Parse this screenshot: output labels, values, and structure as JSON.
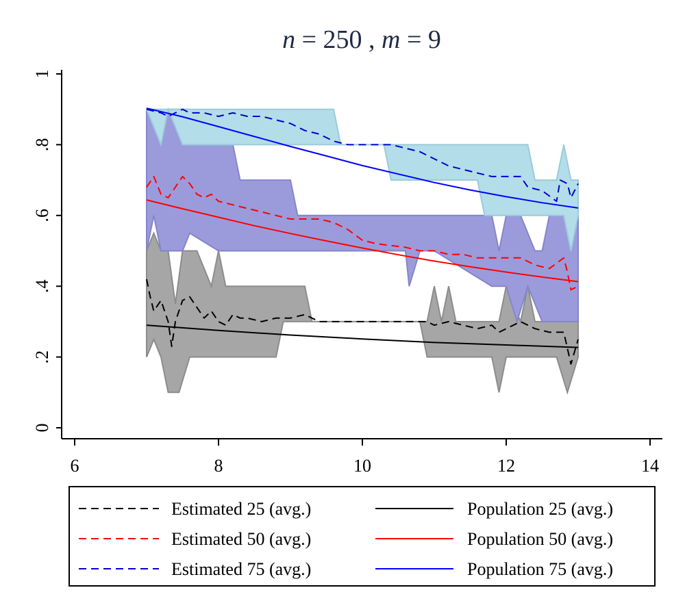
{
  "chart_data": {
    "type": "line",
    "title_n": "n",
    "title_eq1": " = 250 , ",
    "title_m": "m",
    "title_eq2": " = 9",
    "xlim": [
      6,
      14
    ],
    "ylim": [
      0,
      1
    ],
    "x_ticks": [
      6,
      8,
      10,
      12,
      14
    ],
    "x_tick_labels": [
      "6",
      "8",
      "10",
      "12",
      "14"
    ],
    "y_ticks": [
      0,
      0.2,
      0.4,
      0.6,
      0.8,
      1
    ],
    "y_tick_labels": [
      "0",
      ".2",
      ".4",
      ".6",
      ".8",
      "1"
    ],
    "bands": [
      {
        "name": "Band 25",
        "color": "#a6a6a6",
        "edge": "#8c8c8c",
        "upper": [
          [
            7.0,
            0.5
          ],
          [
            7.1,
            0.55
          ],
          [
            7.2,
            0.5
          ],
          [
            7.3,
            0.5
          ],
          [
            7.4,
            0.35
          ],
          [
            7.5,
            0.5
          ],
          [
            7.6,
            0.5
          ],
          [
            7.7,
            0.5
          ],
          [
            7.8,
            0.45
          ],
          [
            7.9,
            0.4
          ],
          [
            8.0,
            0.5
          ],
          [
            8.1,
            0.4
          ],
          [
            8.2,
            0.4
          ],
          [
            8.4,
            0.4
          ],
          [
            8.6,
            0.4
          ],
          [
            8.8,
            0.4
          ],
          [
            9.0,
            0.4
          ],
          [
            9.2,
            0.4
          ],
          [
            9.3,
            0.3
          ],
          [
            10.9,
            0.3
          ],
          [
            11.0,
            0.4
          ],
          [
            11.1,
            0.3
          ],
          [
            11.2,
            0.4
          ],
          [
            11.3,
            0.3
          ],
          [
            11.8,
            0.3
          ],
          [
            11.9,
            0.3
          ],
          [
            12.0,
            0.4
          ],
          [
            12.1,
            0.35
          ],
          [
            12.2,
            0.3
          ],
          [
            12.3,
            0.4
          ],
          [
            12.4,
            0.3
          ],
          [
            12.8,
            0.3
          ],
          [
            13.0,
            0.3
          ]
        ],
        "lower": [
          [
            7.0,
            0.2
          ],
          [
            7.1,
            0.25
          ],
          [
            7.2,
            0.2
          ],
          [
            7.3,
            0.1
          ],
          [
            7.45,
            0.1
          ],
          [
            7.6,
            0.2
          ],
          [
            8.0,
            0.2
          ],
          [
            8.5,
            0.2
          ],
          [
            8.8,
            0.2
          ],
          [
            8.9,
            0.3
          ],
          [
            10.8,
            0.3
          ],
          [
            10.9,
            0.2
          ],
          [
            11.8,
            0.2
          ],
          [
            11.9,
            0.1
          ],
          [
            12.0,
            0.2
          ],
          [
            12.7,
            0.2
          ],
          [
            12.85,
            0.1
          ],
          [
            13.0,
            0.2
          ]
        ]
      },
      {
        "name": "Band 50",
        "color": "#9b9bdc",
        "edge": "#8585cc",
        "upper": [
          [
            7.0,
            0.9
          ],
          [
            7.1,
            0.85
          ],
          [
            7.2,
            0.8
          ],
          [
            7.3,
            0.9
          ],
          [
            7.4,
            0.9
          ],
          [
            7.6,
            0.9
          ],
          [
            7.8,
            0.8
          ],
          [
            8.0,
            0.8
          ],
          [
            8.2,
            0.8
          ],
          [
            8.3,
            0.7
          ],
          [
            8.6,
            0.7
          ],
          [
            9.0,
            0.7
          ],
          [
            9.1,
            0.6
          ],
          [
            11.8,
            0.6
          ],
          [
            11.9,
            0.5
          ],
          [
            12.0,
            0.6
          ],
          [
            12.2,
            0.6
          ],
          [
            12.4,
            0.5
          ],
          [
            12.5,
            0.5
          ],
          [
            12.6,
            0.6
          ],
          [
            12.8,
            0.6
          ],
          [
            12.9,
            0.6
          ],
          [
            13.0,
            0.6
          ]
        ],
        "lower": [
          [
            7.0,
            0.5
          ],
          [
            7.1,
            0.6
          ],
          [
            7.2,
            0.5
          ],
          [
            7.5,
            0.5
          ],
          [
            7.6,
            0.55
          ],
          [
            8.0,
            0.5
          ],
          [
            9.5,
            0.5
          ],
          [
            10.5,
            0.5
          ],
          [
            10.6,
            0.5
          ],
          [
            10.65,
            0.4
          ],
          [
            10.8,
            0.5
          ],
          [
            11.0,
            0.5
          ],
          [
            11.8,
            0.4
          ],
          [
            12.0,
            0.4
          ],
          [
            12.15,
            0.3
          ],
          [
            12.3,
            0.4
          ],
          [
            12.5,
            0.3
          ],
          [
            12.7,
            0.3
          ],
          [
            13.0,
            0.3
          ]
        ]
      },
      {
        "name": "Band 75",
        "color": "#b3dde8",
        "edge": "#9acbdb",
        "upper": [
          [
            7.0,
            0.9
          ],
          [
            9.6,
            0.9
          ],
          [
            9.7,
            0.8
          ],
          [
            10.1,
            0.8
          ],
          [
            10.4,
            0.8
          ],
          [
            12.3,
            0.8
          ],
          [
            12.4,
            0.7
          ],
          [
            12.7,
            0.7
          ],
          [
            12.8,
            0.8
          ],
          [
            12.9,
            0.7
          ],
          [
            13.0,
            0.7
          ]
        ],
        "lower": [
          [
            7.0,
            0.9
          ],
          [
            7.2,
            0.8
          ],
          [
            7.3,
            0.9
          ],
          [
            7.5,
            0.8
          ],
          [
            9.6,
            0.8
          ],
          [
            10.0,
            0.8
          ],
          [
            10.3,
            0.8
          ],
          [
            10.4,
            0.7
          ],
          [
            11.6,
            0.7
          ],
          [
            11.7,
            0.6
          ],
          [
            12.4,
            0.6
          ],
          [
            12.6,
            0.6
          ],
          [
            12.8,
            0.6
          ],
          [
            12.9,
            0.5
          ],
          [
            13.0,
            0.6
          ]
        ]
      }
    ],
    "series": [
      {
        "name": "Estimated 25 (avg.)",
        "color": "#000000",
        "style": "dashed",
        "points": [
          [
            7.0,
            0.42
          ],
          [
            7.05,
            0.37
          ],
          [
            7.1,
            0.33
          ],
          [
            7.2,
            0.36
          ],
          [
            7.3,
            0.3
          ],
          [
            7.35,
            0.23
          ],
          [
            7.4,
            0.3
          ],
          [
            7.5,
            0.36
          ],
          [
            7.6,
            0.37
          ],
          [
            7.7,
            0.34
          ],
          [
            7.8,
            0.31
          ],
          [
            7.9,
            0.33
          ],
          [
            8.0,
            0.3
          ],
          [
            8.1,
            0.29
          ],
          [
            8.2,
            0.32
          ],
          [
            8.3,
            0.31
          ],
          [
            8.4,
            0.31
          ],
          [
            8.6,
            0.3
          ],
          [
            8.8,
            0.31
          ],
          [
            9.0,
            0.31
          ],
          [
            9.2,
            0.32
          ],
          [
            9.4,
            0.3
          ],
          [
            10.0,
            0.3
          ],
          [
            10.9,
            0.3
          ],
          [
            11.0,
            0.29
          ],
          [
            11.2,
            0.3
          ],
          [
            11.4,
            0.29
          ],
          [
            11.6,
            0.28
          ],
          [
            11.8,
            0.29
          ],
          [
            11.9,
            0.27
          ],
          [
            12.0,
            0.28
          ],
          [
            12.2,
            0.3
          ],
          [
            12.4,
            0.28
          ],
          [
            12.6,
            0.27
          ],
          [
            12.8,
            0.27
          ],
          [
            12.9,
            0.18
          ],
          [
            13.0,
            0.25
          ]
        ]
      },
      {
        "name": "Estimated 50 (avg.)",
        "color": "#ff0000",
        "style": "dashed",
        "points": [
          [
            7.0,
            0.68
          ],
          [
            7.1,
            0.71
          ],
          [
            7.2,
            0.66
          ],
          [
            7.3,
            0.65
          ],
          [
            7.5,
            0.71
          ],
          [
            7.6,
            0.69
          ],
          [
            7.7,
            0.66
          ],
          [
            7.8,
            0.65
          ],
          [
            7.9,
            0.66
          ],
          [
            8.0,
            0.64
          ],
          [
            8.2,
            0.63
          ],
          [
            8.4,
            0.62
          ],
          [
            8.6,
            0.61
          ],
          [
            8.8,
            0.6
          ],
          [
            9.0,
            0.59
          ],
          [
            9.4,
            0.59
          ],
          [
            9.6,
            0.58
          ],
          [
            9.8,
            0.56
          ],
          [
            10.0,
            0.53
          ],
          [
            10.2,
            0.52
          ],
          [
            10.6,
            0.51
          ],
          [
            10.8,
            0.5
          ],
          [
            11.0,
            0.5
          ],
          [
            11.2,
            0.49
          ],
          [
            11.4,
            0.49
          ],
          [
            11.6,
            0.48
          ],
          [
            11.8,
            0.48
          ],
          [
            12.0,
            0.48
          ],
          [
            12.2,
            0.48
          ],
          [
            12.4,
            0.46
          ],
          [
            12.6,
            0.45
          ],
          [
            12.8,
            0.48
          ],
          [
            12.85,
            0.44
          ],
          [
            12.9,
            0.39
          ],
          [
            13.0,
            0.4
          ]
        ]
      },
      {
        "name": "Estimated 75 (avg.)",
        "color": "#0000cc",
        "style": "dashed",
        "points": [
          [
            7.0,
            0.9
          ],
          [
            7.2,
            0.89
          ],
          [
            7.3,
            0.88
          ],
          [
            7.5,
            0.9
          ],
          [
            7.6,
            0.89
          ],
          [
            7.8,
            0.89
          ],
          [
            8.0,
            0.88
          ],
          [
            8.2,
            0.89
          ],
          [
            8.4,
            0.88
          ],
          [
            8.6,
            0.88
          ],
          [
            8.8,
            0.87
          ],
          [
            9.0,
            0.86
          ],
          [
            9.2,
            0.84
          ],
          [
            9.4,
            0.83
          ],
          [
            9.6,
            0.81
          ],
          [
            9.8,
            0.8
          ],
          [
            10.0,
            0.8
          ],
          [
            10.4,
            0.8
          ],
          [
            10.6,
            0.79
          ],
          [
            10.8,
            0.78
          ],
          [
            11.0,
            0.76
          ],
          [
            11.2,
            0.74
          ],
          [
            11.4,
            0.73
          ],
          [
            11.6,
            0.72
          ],
          [
            11.8,
            0.71
          ],
          [
            12.0,
            0.71
          ],
          [
            12.2,
            0.71
          ],
          [
            12.3,
            0.68
          ],
          [
            12.5,
            0.67
          ],
          [
            12.7,
            0.64
          ],
          [
            12.75,
            0.7
          ],
          [
            12.85,
            0.69
          ],
          [
            12.9,
            0.65
          ],
          [
            13.0,
            0.69
          ]
        ]
      },
      {
        "name": "Population 25 (avg.)",
        "color": "#000000",
        "style": "solid",
        "points": [
          [
            7.0,
            0.29
          ],
          [
            8.0,
            0.275
          ],
          [
            9.0,
            0.262
          ],
          [
            10.0,
            0.251
          ],
          [
            11.0,
            0.241
          ],
          [
            12.0,
            0.234
          ],
          [
            13.0,
            0.227
          ]
        ]
      },
      {
        "name": "Population 50 (avg.)",
        "color": "#ff0000",
        "style": "solid",
        "points": [
          [
            7.0,
            0.644
          ],
          [
            7.5,
            0.619
          ],
          [
            8.0,
            0.595
          ],
          [
            8.5,
            0.571
          ],
          [
            9.0,
            0.549
          ],
          [
            9.5,
            0.528
          ],
          [
            10.0,
            0.508
          ],
          [
            10.5,
            0.489
          ],
          [
            11.0,
            0.471
          ],
          [
            11.5,
            0.455
          ],
          [
            12.0,
            0.44
          ],
          [
            12.5,
            0.426
          ],
          [
            13.0,
            0.413
          ]
        ]
      },
      {
        "name": "Population 75 (avg.)",
        "color": "#0000ff",
        "style": "solid",
        "points": [
          [
            7.0,
            0.903
          ],
          [
            7.5,
            0.879
          ],
          [
            8.0,
            0.851
          ],
          [
            8.5,
            0.823
          ],
          [
            9.0,
            0.795
          ],
          [
            9.5,
            0.768
          ],
          [
            10.0,
            0.741
          ],
          [
            10.5,
            0.717
          ],
          [
            11.0,
            0.693
          ],
          [
            11.5,
            0.672
          ],
          [
            12.0,
            0.653
          ],
          [
            12.5,
            0.636
          ],
          [
            13.0,
            0.621
          ]
        ]
      }
    ],
    "legend": [
      {
        "label": "Estimated 25 (avg.)",
        "color": "#000000",
        "style": "dashed"
      },
      {
        "label": "Population 25 (avg.)",
        "color": "#000000",
        "style": "solid"
      },
      {
        "label": "Estimated 50 (avg.)",
        "color": "#ff0000",
        "style": "dashed"
      },
      {
        "label": "Population 50 (avg.)",
        "color": "#ff0000",
        "style": "solid"
      },
      {
        "label": "Estimated 75 (avg.)",
        "color": "#0000cc",
        "style": "dashed"
      },
      {
        "label": "Population 75 (avg.)",
        "color": "#0000ff",
        "style": "solid"
      }
    ],
    "legend_position": "bottom"
  }
}
